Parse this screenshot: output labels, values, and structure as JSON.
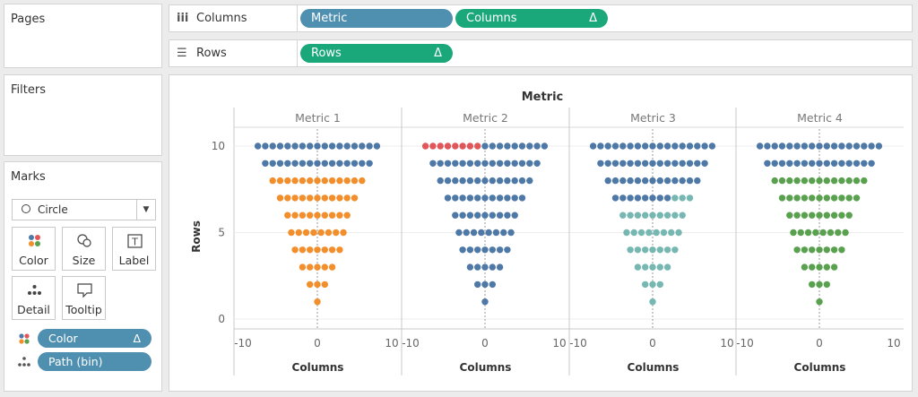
{
  "pages": {
    "title": "Pages"
  },
  "filters": {
    "title": "Filters"
  },
  "marks": {
    "title": "Marks",
    "mark_type": "Circle",
    "buttons": {
      "color": "Color",
      "size": "Size",
      "label": "Label",
      "detail": "Detail",
      "tooltip": "Tooltip"
    },
    "label_icon_glyph": "T",
    "pills": [
      {
        "label": "Color",
        "icon": "color-dots-icon",
        "delta": "Δ"
      },
      {
        "label": "Path (bin)",
        "icon": "detail-dots-icon"
      }
    ]
  },
  "shelves": {
    "columns": {
      "label": "Columns",
      "icon": "columns-icon",
      "pills": [
        {
          "label": "Metric",
          "color": "#4f8fb0"
        },
        {
          "label": "Columns",
          "color": "#1aa87a",
          "delta": "Δ"
        }
      ]
    },
    "rows": {
      "label": "Rows",
      "icon": "rows-icon",
      "pills": [
        {
          "label": "Rows",
          "color": "#1aa87a",
          "delta": "Δ"
        }
      ]
    }
  },
  "colors": {
    "blue": "#4e79a7",
    "orange": "#f28e2b",
    "red": "#e15759",
    "teal": "#76b7b2",
    "green": "#59a14f"
  },
  "chart_data": {
    "type": "scatter",
    "title": "Metric",
    "xlabel": "Columns",
    "ylabel": "Rows",
    "xlim": [
      -10,
      10
    ],
    "ylim": [
      0,
      10
    ],
    "x_ticks": [
      "-10",
      "0",
      "10"
    ],
    "y_ticks": [
      "0",
      "5",
      "10"
    ],
    "dot_rows": [
      {
        "y": 10,
        "n": 17
      },
      {
        "y": 9,
        "n": 15
      },
      {
        "y": 8,
        "n": 13
      },
      {
        "y": 7,
        "n": 11
      },
      {
        "y": 6,
        "n": 9
      },
      {
        "y": 5,
        "n": 8
      },
      {
        "y": 4,
        "n": 7
      },
      {
        "y": 3,
        "n": 5
      },
      {
        "y": 2,
        "n": 3
      },
      {
        "y": 1,
        "n": 1
      }
    ],
    "panels": [
      {
        "name": "Metric 1",
        "base": "#f28e2b",
        "filled_by_row": [
          17,
          15,
          0,
          0,
          0,
          0,
          0,
          0,
          0,
          0
        ],
        "highlight_from_left": false
      },
      {
        "name": "Metric 2",
        "base": "#e15759",
        "filled_by_row": [
          8,
          0,
          0,
          0,
          0,
          0,
          0,
          0,
          0,
          0
        ],
        "highlight_from_left": true
      },
      {
        "name": "Metric 3",
        "base": "#76b7b2",
        "filled_by_row": [
          17,
          15,
          13,
          8,
          0,
          0,
          0,
          0,
          0,
          0
        ],
        "highlight_from_left": false
      },
      {
        "name": "Metric 4",
        "base": "#59a14f",
        "filled_by_row": [
          17,
          15,
          0,
          0,
          0,
          0,
          0,
          0,
          0,
          0
        ],
        "highlight_from_left": false
      }
    ],
    "highlight_color": "#4e79a7"
  }
}
